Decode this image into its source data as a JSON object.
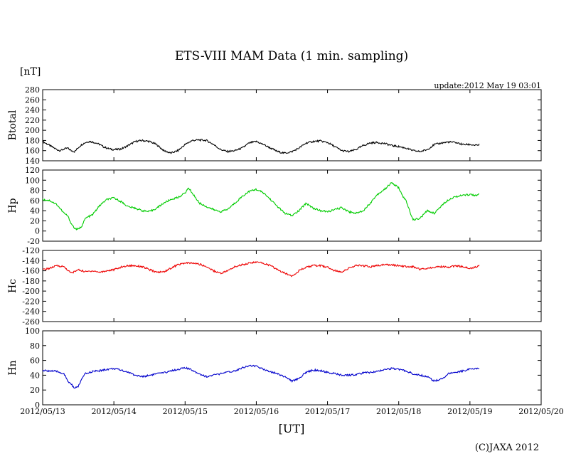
{
  "title": "ETS-VIII MAM Data (1 min. sampling)",
  "unit_label": "[nT]",
  "update_label": "update:2012 May 19 03:01",
  "xlabel": "[UT]",
  "copyright": "(C)JAXA 2012",
  "chart_data": [
    {
      "type": "line",
      "ylabel": "Btotal",
      "ylim": [
        140,
        280
      ],
      "yticks": [
        140,
        160,
        180,
        200,
        220,
        240,
        260,
        280
      ],
      "color": "#000000",
      "xlim": [
        "2012/05/13",
        "2012/05/20"
      ],
      "x_days": [
        0,
        0.05,
        0.1,
        0.15,
        0.2,
        0.25,
        0.3,
        0.35,
        0.4,
        0.45,
        0.5,
        0.55,
        0.6,
        0.65,
        0.7,
        0.75,
        0.8,
        0.85,
        0.9,
        0.95,
        1.0,
        1.1,
        1.2,
        1.3,
        1.4,
        1.5,
        1.6,
        1.7,
        1.8,
        1.9,
        2.0,
        2.1,
        2.2,
        2.3,
        2.4,
        2.5,
        2.6,
        2.7,
        2.8,
        2.9,
        3.0,
        3.1,
        3.2,
        3.3,
        3.4,
        3.5,
        3.6,
        3.7,
        3.8,
        3.9,
        4.0,
        4.1,
        4.2,
        4.3,
        4.4,
        4.5,
        4.6,
        4.7,
        4.8,
        4.9,
        5.0,
        5.1,
        5.2,
        5.3,
        5.4,
        5.5,
        5.6,
        5.7,
        5.8,
        5.9,
        6.0,
        6.1,
        6.13
      ],
      "values": [
        178,
        174,
        170,
        166,
        162,
        160,
        163,
        165,
        160,
        158,
        166,
        172,
        176,
        178,
        177,
        175,
        172,
        168,
        165,
        163,
        162,
        163,
        170,
        178,
        180,
        178,
        172,
        160,
        155,
        160,
        172,
        180,
        181,
        180,
        172,
        162,
        158,
        160,
        165,
        175,
        178,
        172,
        165,
        158,
        155,
        158,
        165,
        175,
        178,
        179,
        176,
        168,
        160,
        158,
        162,
        170,
        175,
        176,
        174,
        170,
        168,
        165,
        160,
        158,
        162,
        172,
        175,
        177,
        176,
        172,
        172,
        170,
        172
      ]
    },
    {
      "type": "line",
      "ylabel": "Hp",
      "ylim": [
        -20,
        120
      ],
      "yticks": [
        -20,
        0,
        20,
        40,
        60,
        80,
        100,
        120
      ],
      "color": "#00cc00",
      "xlim": [
        "2012/05/13",
        "2012/05/20"
      ],
      "x_days": [
        0,
        0.1,
        0.2,
        0.3,
        0.35,
        0.4,
        0.45,
        0.5,
        0.55,
        0.6,
        0.7,
        0.8,
        0.9,
        1.0,
        1.1,
        1.2,
        1.3,
        1.4,
        1.5,
        1.6,
        1.7,
        1.8,
        1.9,
        2.0,
        2.05,
        2.1,
        2.2,
        2.3,
        2.4,
        2.5,
        2.6,
        2.7,
        2.8,
        2.9,
        3.0,
        3.1,
        3.2,
        3.3,
        3.4,
        3.5,
        3.6,
        3.7,
        3.8,
        3.9,
        4.0,
        4.1,
        4.2,
        4.3,
        4.4,
        4.5,
        4.6,
        4.7,
        4.8,
        4.9,
        5.0,
        5.05,
        5.1,
        5.2,
        5.3,
        5.4,
        5.5,
        5.6,
        5.7,
        5.8,
        5.9,
        6.0,
        6.1,
        6.13
      ],
      "values": [
        62,
        60,
        52,
        35,
        30,
        15,
        5,
        3,
        10,
        25,
        32,
        50,
        62,
        65,
        58,
        48,
        45,
        40,
        38,
        45,
        55,
        62,
        66,
        75,
        85,
        75,
        55,
        48,
        42,
        38,
        43,
        55,
        68,
        78,
        82,
        75,
        62,
        48,
        35,
        30,
        40,
        55,
        45,
        40,
        38,
        42,
        46,
        38,
        35,
        40,
        55,
        72,
        82,
        95,
        85,
        70,
        60,
        22,
        25,
        40,
        35,
        50,
        62,
        68,
        70,
        72,
        70,
        72
      ]
    },
    {
      "type": "line",
      "ylabel": "Hc",
      "ylim": [
        -260,
        -120
      ],
      "yticks": [
        -260,
        -240,
        -220,
        -200,
        -180,
        -160,
        -140,
        -120
      ],
      "color": "#ee0000",
      "xlim": [
        "2012/05/13",
        "2012/05/20"
      ],
      "x_days": [
        0,
        0.1,
        0.2,
        0.3,
        0.4,
        0.5,
        0.6,
        0.7,
        0.8,
        0.9,
        1.0,
        1.1,
        1.2,
        1.3,
        1.4,
        1.5,
        1.6,
        1.7,
        1.8,
        1.9,
        2.0,
        2.1,
        2.2,
        2.3,
        2.4,
        2.5,
        2.6,
        2.7,
        2.8,
        2.9,
        3.0,
        3.1,
        3.2,
        3.3,
        3.4,
        3.5,
        3.6,
        3.7,
        3.8,
        3.9,
        4.0,
        4.1,
        4.2,
        4.3,
        4.4,
        4.5,
        4.6,
        4.7,
        4.8,
        4.9,
        5.0,
        5.1,
        5.2,
        5.3,
        5.4,
        5.5,
        5.6,
        5.7,
        5.8,
        5.9,
        6.0,
        6.1,
        6.13
      ],
      "values": [
        -158,
        -155,
        -150,
        -152,
        -165,
        -158,
        -162,
        -160,
        -163,
        -160,
        -158,
        -153,
        -150,
        -150,
        -152,
        -158,
        -163,
        -162,
        -155,
        -148,
        -145,
        -145,
        -147,
        -152,
        -160,
        -165,
        -160,
        -152,
        -148,
        -145,
        -143,
        -145,
        -150,
        -158,
        -165,
        -170,
        -160,
        -153,
        -150,
        -150,
        -153,
        -160,
        -162,
        -155,
        -150,
        -150,
        -152,
        -150,
        -148,
        -148,
        -150,
        -152,
        -152,
        -157,
        -155,
        -153,
        -152,
        -153,
        -150,
        -152,
        -155,
        -152,
        -150
      ]
    },
    {
      "type": "line",
      "ylabel": "Hn",
      "ylim": [
        0,
        100
      ],
      "yticks": [
        0,
        20,
        40,
        60,
        80,
        100
      ],
      "color": "#0000cc",
      "xlim": [
        "2012/05/13",
        "2012/05/20"
      ],
      "x_days": [
        0,
        0.1,
        0.2,
        0.3,
        0.35,
        0.4,
        0.45,
        0.5,
        0.55,
        0.6,
        0.7,
        0.8,
        0.9,
        1.0,
        1.1,
        1.2,
        1.3,
        1.4,
        1.5,
        1.6,
        1.7,
        1.8,
        1.9,
        2.0,
        2.1,
        2.2,
        2.3,
        2.4,
        2.5,
        2.6,
        2.7,
        2.8,
        2.9,
        3.0,
        3.1,
        3.2,
        3.3,
        3.4,
        3.5,
        3.6,
        3.7,
        3.8,
        3.9,
        4.0,
        4.1,
        4.2,
        4.3,
        4.4,
        4.5,
        4.6,
        4.7,
        4.8,
        4.9,
        5.0,
        5.1,
        5.2,
        5.3,
        5.4,
        5.5,
        5.6,
        5.7,
        5.8,
        5.9,
        6.0,
        6.1,
        6.13
      ],
      "values": [
        46,
        46,
        45,
        42,
        32,
        28,
        22,
        25,
        35,
        42,
        45,
        46,
        48,
        49,
        47,
        44,
        40,
        38,
        40,
        42,
        43,
        46,
        48,
        50,
        47,
        42,
        38,
        40,
        42,
        44,
        46,
        50,
        53,
        52,
        48,
        45,
        42,
        38,
        32,
        36,
        44,
        47,
        46,
        44,
        42,
        40,
        40,
        41,
        43,
        44,
        45,
        48,
        49,
        48,
        46,
        42,
        40,
        38,
        32,
        35,
        42,
        44,
        46,
        48,
        49,
        48
      ]
    }
  ],
  "x_tick_labels": [
    "2012/05/13",
    "2012/05/14",
    "2012/05/15",
    "2012/05/16",
    "2012/05/17",
    "2012/05/18",
    "2012/05/19",
    "2012/05/20"
  ]
}
